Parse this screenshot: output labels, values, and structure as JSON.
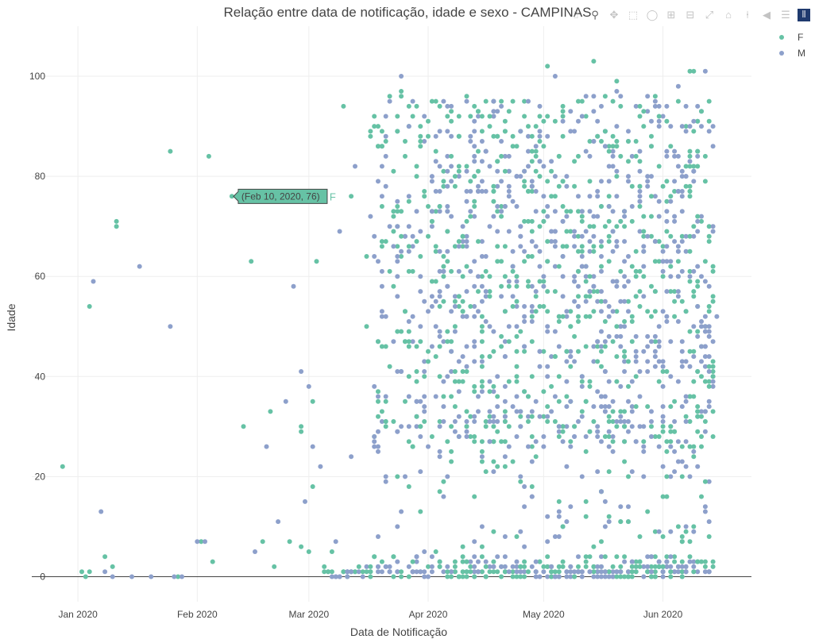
{
  "chart_data": {
    "type": "scatter",
    "title": "Relação entre data de notificação, idade e sexo - CAMPINAS",
    "xlabel": "Data de Notificação",
    "ylabel": "Idade",
    "x_type": "date",
    "xlim": [
      "2019-12-20",
      "2020-06-24"
    ],
    "ylim": [
      -5,
      110
    ],
    "x_ticks": [
      "2020-01-01",
      "2020-02-01",
      "2020-03-01",
      "2020-04-01",
      "2020-05-01",
      "2020-06-01"
    ],
    "x_tick_labels": [
      "Jan 2020",
      "Feb 2020",
      "Mar 2020",
      "Apr 2020",
      "May 2020",
      "Jun 2020"
    ],
    "y_ticks": [
      0,
      20,
      40,
      60,
      80,
      100
    ],
    "y_tick_labels": [
      "0",
      "20",
      "40",
      "60",
      "80",
      "100"
    ],
    "grid": true,
    "legend_position": "top-right",
    "series": [
      {
        "name": "F",
        "color": "#66c2a5",
        "points": [
          [
            "2019-12-28",
            22
          ],
          [
            "2020-01-02",
            1
          ],
          [
            "2020-01-03",
            0
          ],
          [
            "2020-01-04",
            1
          ],
          [
            "2020-01-04",
            54
          ],
          [
            "2020-01-08",
            4
          ],
          [
            "2020-01-10",
            2
          ],
          [
            "2020-01-11",
            71
          ],
          [
            "2020-01-11",
            70
          ],
          [
            "2020-01-25",
            85
          ],
          [
            "2020-01-27",
            0
          ],
          [
            "2020-02-02",
            7
          ],
          [
            "2020-02-04",
            84
          ],
          [
            "2020-02-05",
            3
          ],
          [
            "2020-02-10",
            76
          ],
          [
            "2020-02-13",
            30
          ],
          [
            "2020-02-15",
            63
          ],
          [
            "2020-02-18",
            7
          ],
          [
            "2020-02-20",
            33
          ],
          [
            "2020-02-21",
            2
          ],
          [
            "2020-02-25",
            7
          ],
          [
            "2020-02-28",
            6
          ],
          [
            "2020-02-28",
            30
          ],
          [
            "2020-02-28",
            29
          ],
          [
            "2020-03-01",
            5
          ],
          [
            "2020-03-02",
            18
          ],
          [
            "2020-03-02",
            35
          ],
          [
            "2020-03-03",
            63
          ],
          [
            "2020-03-07",
            5
          ],
          [
            "2020-03-10",
            94
          ],
          [
            "2020-03-12",
            76
          ],
          [
            "2020-03-15",
            1
          ],
          [
            "2020-03-16",
            50
          ],
          [
            "2020-03-16",
            64
          ],
          [
            "2020-03-17",
            89
          ],
          [
            "2020-03-19",
            37
          ],
          [
            "2020-03-20",
            3
          ],
          [
            "2020-03-20",
            66
          ],
          [
            "2020-03-22",
            96
          ],
          [
            "2020-03-23",
            81
          ],
          [
            "2020-03-23",
            31
          ],
          [
            "2020-03-24",
            89
          ],
          [
            "2020-03-25",
            97
          ],
          [
            "2020-03-27",
            75
          ],
          [
            "2020-04-04",
            46
          ],
          [
            "2020-05-02",
            102
          ],
          [
            "2020-05-14",
            103
          ],
          [
            "2020-06-08",
            101
          ],
          [
            "2020-06-09",
            101
          ],
          [
            "2020-06-13",
            91
          ],
          [
            "2020-06-12",
            19
          ],
          [
            "2020-06-14",
            40
          ],
          [
            "2020-06-01",
            16
          ],
          [
            "2020-05-20",
            99
          ]
        ]
      },
      {
        "name": "M",
        "color": "#8da0cb",
        "points": [
          [
            "2020-01-05",
            59
          ],
          [
            "2020-01-07",
            13
          ],
          [
            "2020-01-08",
            1
          ],
          [
            "2020-01-10",
            0
          ],
          [
            "2020-01-15",
            0
          ],
          [
            "2020-01-17",
            62
          ],
          [
            "2020-01-20",
            0
          ],
          [
            "2020-01-25",
            50
          ],
          [
            "2020-01-26",
            0
          ],
          [
            "2020-01-28",
            0
          ],
          [
            "2020-02-01",
            7
          ],
          [
            "2020-02-03",
            7
          ],
          [
            "2020-02-16",
            5
          ],
          [
            "2020-02-19",
            26
          ],
          [
            "2020-02-22",
            11
          ],
          [
            "2020-02-24",
            35
          ],
          [
            "2020-02-26",
            58
          ],
          [
            "2020-02-28",
            41
          ],
          [
            "2020-02-29",
            15
          ],
          [
            "2020-03-01",
            38
          ],
          [
            "2020-03-02",
            26
          ],
          [
            "2020-03-04",
            22
          ],
          [
            "2020-03-08",
            7
          ],
          [
            "2020-03-09",
            69
          ],
          [
            "2020-03-12",
            24
          ],
          [
            "2020-03-13",
            82
          ],
          [
            "2020-03-17",
            72
          ],
          [
            "2020-03-19",
            36
          ],
          [
            "2020-03-21",
            20
          ],
          [
            "2020-03-25",
            100
          ],
          [
            "2020-03-25",
            13
          ],
          [
            "2020-05-04",
            100
          ],
          [
            "2020-05-20",
            97
          ],
          [
            "2020-06-05",
            98
          ],
          [
            "2020-06-12",
            101
          ],
          [
            "2020-06-13",
            11
          ],
          [
            "2020-06-14",
            47
          ],
          [
            "2020-06-15",
            52
          ],
          [
            "2020-06-08",
            3
          ],
          [
            "2020-05-31",
            9
          ]
        ]
      }
    ],
    "dense_region": {
      "x_range": [
        "2020-03-17",
        "2020-06-14"
      ],
      "y_range": [
        0,
        96
      ]
    },
    "hover": {
      "x": "2020-02-10",
      "y": 76,
      "label": "(Feb 10, 2020, 76)",
      "series": "F"
    }
  },
  "modebar": {
    "buttons": [
      {
        "icon": "camera-icon",
        "glyph": "⌷"
      },
      {
        "icon": "zoom-icon",
        "glyph": "⚲",
        "active": true
      },
      {
        "icon": "pan-icon",
        "glyph": "✥"
      },
      {
        "icon": "box-select-icon",
        "glyph": "⬚"
      },
      {
        "icon": "lasso-select-icon",
        "glyph": "◯"
      },
      {
        "icon": "zoom-in-icon",
        "glyph": "⊞"
      },
      {
        "icon": "zoom-out-icon",
        "glyph": "⊟"
      },
      {
        "icon": "autoscale-icon",
        "glyph": "⤢"
      },
      {
        "icon": "reset-axes-icon",
        "glyph": "⌂"
      },
      {
        "icon": "spike-lines-icon",
        "glyph": "⍿"
      },
      {
        "icon": "hover-closest-icon",
        "glyph": "◀"
      },
      {
        "icon": "hover-compare-icon",
        "glyph": "☰"
      }
    ],
    "logo_icon": "plotly-logo-icon"
  }
}
